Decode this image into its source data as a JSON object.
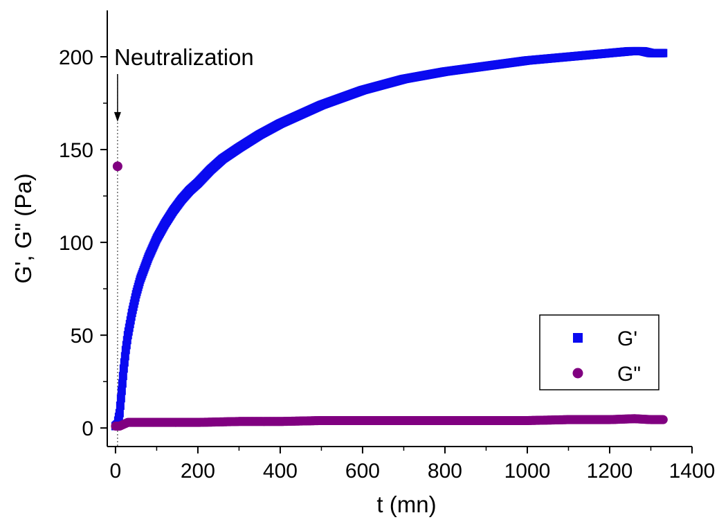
{
  "chart_data": {
    "type": "scatter",
    "title": "",
    "xlabel": "t (mn)",
    "ylabel": "G', G\" (Pa)",
    "xlim": [
      -20,
      1400
    ],
    "ylim": [
      -10,
      225
    ],
    "x_ticks": [
      0,
      200,
      400,
      600,
      800,
      1000,
      1200,
      1400
    ],
    "x_tick_labels": [
      "0",
      "200",
      "400",
      "600",
      "800",
      "1000",
      "1200",
      "1400"
    ],
    "y_ticks": [
      0,
      50,
      100,
      150,
      200
    ],
    "y_tick_labels": [
      "0",
      "50",
      "100",
      "150",
      "200"
    ],
    "grid": false,
    "legend_position": "lower-right",
    "annotation": {
      "text": "Neutralization",
      "x": 5,
      "arrow_y_from": 200,
      "arrow_y_to": 162
    },
    "series": [
      {
        "name": "G'",
        "marker": "square",
        "color": "#0a0af0",
        "x": [
          0,
          5,
          10,
          15,
          20,
          25,
          30,
          35,
          40,
          45,
          50,
          60,
          70,
          80,
          90,
          100,
          120,
          140,
          160,
          180,
          200,
          230,
          260,
          300,
          350,
          400,
          450,
          500,
          550,
          600,
          650,
          700,
          800,
          900,
          1000,
          1100,
          1200,
          1250,
          1280,
          1300,
          1330
        ],
        "y": [
          1,
          2,
          8,
          20,
          32,
          42,
          50,
          56,
          62,
          67,
          72,
          80,
          86,
          92,
          97,
          102,
          110,
          117,
          123,
          128,
          132,
          139,
          145,
          151,
          158,
          164,
          169,
          174,
          178,
          182,
          185,
          188,
          192,
          195,
          198,
          200,
          202,
          203,
          203,
          202,
          202
        ]
      },
      {
        "name": "G\"",
        "marker": "circle",
        "color": "#800080",
        "x": [
          0,
          5,
          10,
          20,
          30,
          50,
          100,
          150,
          200,
          300,
          400,
          500,
          600,
          700,
          800,
          900,
          1000,
          1100,
          1200,
          1260,
          1300,
          1330
        ],
        "y": [
          1,
          141,
          1,
          2,
          3,
          3,
          3,
          3,
          3,
          3.5,
          3.5,
          4,
          4,
          4,
          4,
          4,
          4,
          4.5,
          4.5,
          5,
          4.5,
          4.5
        ]
      }
    ]
  }
}
